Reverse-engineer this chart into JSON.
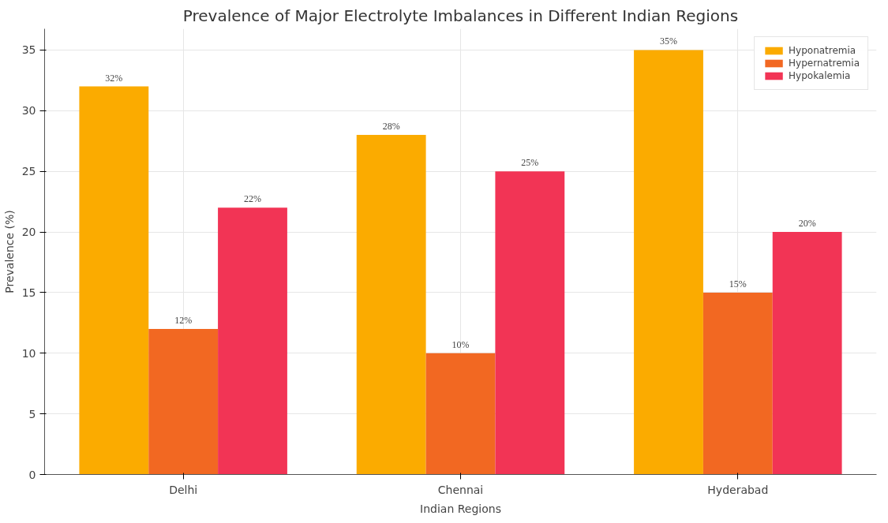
{
  "chart_data": {
    "type": "bar",
    "title": "Prevalence of Major Electrolyte Imbalances in Different Indian Regions",
    "xlabel": "Indian Regions",
    "ylabel": "Prevalence (%)",
    "categories": [
      "Delhi",
      "Chennai",
      "Hyderabad"
    ],
    "series": [
      {
        "name": "Hyponatremia",
        "color": "#fbab00",
        "values": [
          32,
          28,
          35
        ],
        "value_labels": [
          "32%",
          "28%",
          "35%"
        ]
      },
      {
        "name": "Hypernatremia",
        "color": "#f26822",
        "values": [
          12,
          10,
          15
        ],
        "value_labels": [
          "12%",
          "10%",
          "15%"
        ]
      },
      {
        "name": "Hypokalemia",
        "color": "#f23455",
        "values": [
          22,
          25,
          20
        ],
        "value_labels": [
          "22%",
          "25%",
          "20%"
        ]
      }
    ],
    "ylim": [
      0,
      36.75
    ],
    "yticks": [
      0,
      5,
      10,
      15,
      20,
      25,
      30,
      35
    ],
    "grid": true,
    "legend": "top right"
  }
}
